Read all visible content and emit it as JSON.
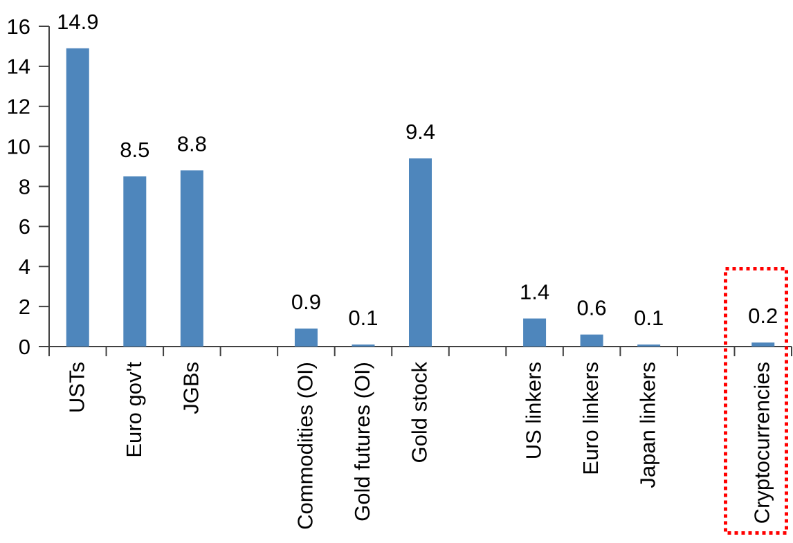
{
  "chart_data": {
    "type": "bar",
    "title": "",
    "xlabel": "",
    "ylabel": "",
    "categories": [
      "USTs",
      "Euro gov't",
      "JGBs",
      "",
      "Commodities (OI)",
      "Gold futures (OI)",
      "Gold stock",
      "",
      "US linkers",
      "Euro linkers",
      "Japan linkers",
      "",
      "Cryptocurrencies"
    ],
    "values": [
      14.9,
      8.5,
      8.8,
      null,
      0.9,
      0.1,
      9.4,
      null,
      1.4,
      0.6,
      0.1,
      null,
      0.2
    ],
    "bar_value_labels": [
      "14.9",
      "8.5",
      "8.8",
      null,
      "0.9",
      "0.1",
      "9.4",
      null,
      "1.4",
      "0.6",
      "0.1",
      null,
      "0.2"
    ],
    "ylim": [
      0,
      16
    ],
    "ytick_labels": [
      "0",
      "2",
      "4",
      "6",
      "8",
      "10",
      "12",
      "14",
      "16"
    ],
    "grid": false,
    "legend_position": "none",
    "x_label_rotation_degrees": -90,
    "colors": {
      "bar_fill": "#4E86BC",
      "axis": "#404040",
      "text": "#000000",
      "highlight_box": "#FF0000"
    },
    "highlight": {
      "category": "Cryptocurrencies",
      "style": "red-dotted-rectangle"
    }
  }
}
